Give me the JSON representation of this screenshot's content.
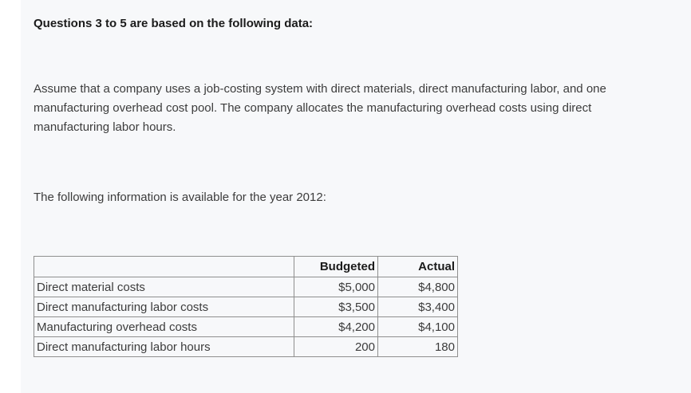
{
  "page": {
    "heading": "Questions 3 to 5 are based on the following data:",
    "paragraph_lines": [
      "Assume that a company uses a job-costing system with direct materials, direct manufacturing labor, and one",
      "manufacturing overhead cost pool. The company allocates the manufacturing overhead costs using direct",
      "manufacturing labor hours."
    ],
    "info_line": "The following information is available for the year 2012:"
  },
  "table": {
    "columns": [
      "",
      "Budgeted",
      "Actual"
    ],
    "rows": [
      {
        "label": "Direct material costs",
        "budgeted": "$5,000",
        "actual": "$4,800"
      },
      {
        "label": "Direct manufacturing labor costs",
        "budgeted": "$3,500",
        "actual": "$3,400"
      },
      {
        "label": "Manufacturing overhead costs",
        "budgeted": "$4,200",
        "actual": "$4,100"
      },
      {
        "label": "Direct manufacturing labor hours",
        "budgeted": "200",
        "actual": "180"
      }
    ]
  },
  "colors": {
    "content_background": "#f7f8fa",
    "table_border": "#8f8f8f",
    "heading_text": "#1b1b1b",
    "body_text": "#3c3c3c"
  }
}
